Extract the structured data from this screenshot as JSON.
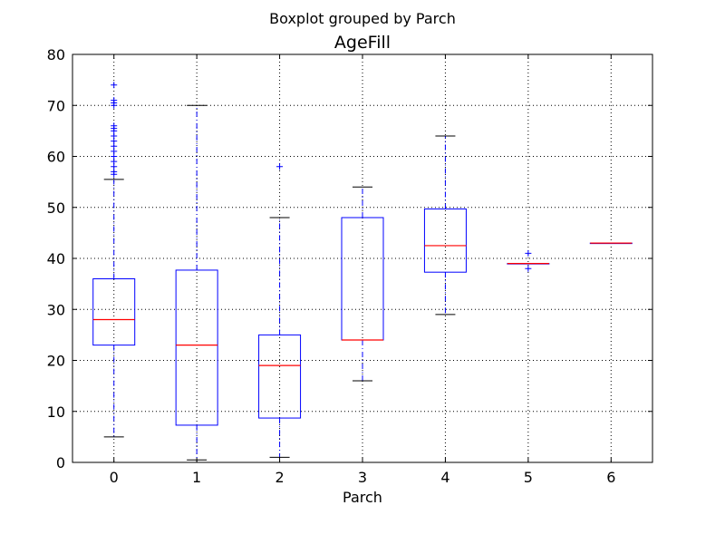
{
  "chart_data": {
    "type": "box",
    "suptitle": "Boxplot grouped by Parch",
    "title": "AgeFill",
    "xlabel": "Parch",
    "ylabel": "",
    "categories": [
      "0",
      "1",
      "2",
      "3",
      "4",
      "5",
      "6"
    ],
    "ylim": [
      0,
      80
    ],
    "yticks": [
      0,
      10,
      20,
      30,
      40,
      50,
      60,
      70,
      80
    ],
    "grid": true,
    "boxes": [
      {
        "category": "0",
        "whislo": 5,
        "q1": 23,
        "med": 28,
        "q3": 36,
        "whishi": 55.5,
        "fliers": [
          56.5,
          57,
          58,
          59,
          60,
          61,
          62,
          63,
          64,
          65,
          65.5,
          66,
          70,
          70.5,
          71,
          74
        ]
      },
      {
        "category": "1",
        "whislo": 0.5,
        "q1": 7.3,
        "med": 23,
        "q3": 37.7,
        "whishi": 70,
        "fliers": []
      },
      {
        "category": "2",
        "whislo": 1,
        "q1": 8.7,
        "med": 19,
        "q3": 25,
        "whishi": 48,
        "fliers": [
          58
        ]
      },
      {
        "category": "3",
        "whislo": 16,
        "q1": 24,
        "med": 24,
        "q3": 48,
        "whishi": 54,
        "fliers": []
      },
      {
        "category": "4",
        "whislo": 29,
        "q1": 37.3,
        "med": 42.5,
        "q3": 49.7,
        "whishi": 64,
        "fliers": []
      },
      {
        "category": "5",
        "whislo": 39,
        "q1": 39,
        "med": 39,
        "q3": 39,
        "whishi": 39,
        "fliers": [
          38,
          41
        ]
      },
      {
        "category": "6",
        "whislo": 43,
        "q1": 43,
        "med": 43,
        "q3": 43,
        "whishi": 43,
        "fliers": []
      }
    ],
    "colors": {
      "box": "#0000ff",
      "median": "#ff0000",
      "cap": "#000000",
      "flier": "#0000ff",
      "grid": "#000000"
    }
  }
}
